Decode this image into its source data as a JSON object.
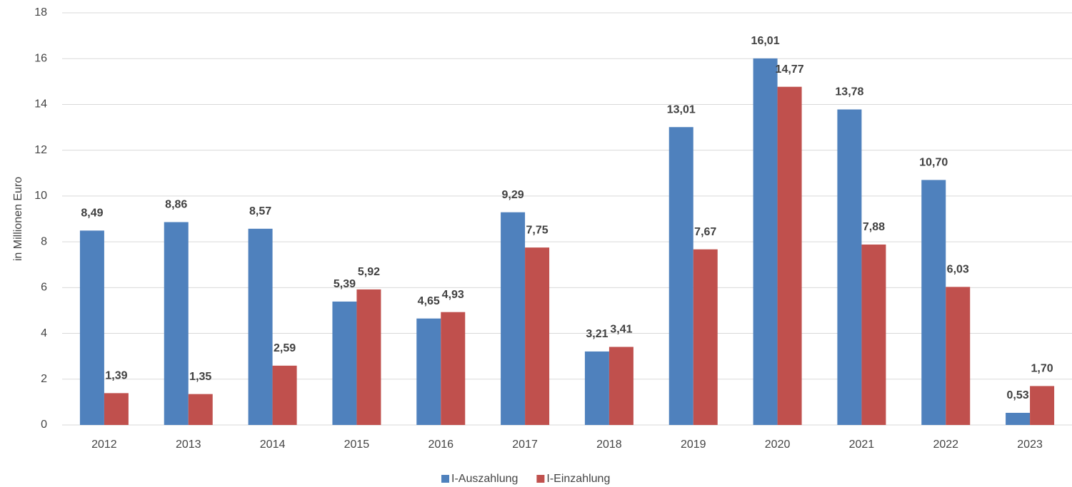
{
  "chart_data": {
    "type": "bar",
    "y_label": "in Millionen Euro",
    "categories": [
      "2012",
      "2013",
      "2014",
      "2015",
      "2016",
      "2017",
      "2018",
      "2019",
      "2020",
      "2021",
      "2022",
      "2023"
    ],
    "series": [
      {
        "name": "I-Auszahlung",
        "color": "#4f81bd",
        "values": [
          8.49,
          8.86,
          8.57,
          5.39,
          4.65,
          9.29,
          3.21,
          13.01,
          16.01,
          13.78,
          10.7,
          0.53
        ],
        "value_labels": [
          "8,49",
          "8,86",
          "8,57",
          "5,39",
          "4,65",
          "9,29",
          "3,21",
          "13,01",
          "16,01",
          "13,78",
          "10,70",
          "0,53"
        ]
      },
      {
        "name": "I-Einzahlung",
        "color": "#c0504d",
        "values": [
          1.39,
          1.35,
          2.59,
          5.92,
          4.93,
          7.75,
          3.41,
          7.67,
          14.77,
          7.88,
          6.03,
          1.7
        ],
        "value_labels": [
          "1,39",
          "1,35",
          "2,59",
          "5,92",
          "4,93",
          "7,75",
          "3,41",
          "7,67",
          "14,77",
          "7,88",
          "6,03",
          "1,70"
        ]
      }
    ],
    "ylim": [
      0,
      18
    ],
    "yticks": [
      0,
      2,
      4,
      6,
      8,
      10,
      12,
      14,
      16,
      18
    ],
    "grid": true,
    "legend": "bottom"
  }
}
